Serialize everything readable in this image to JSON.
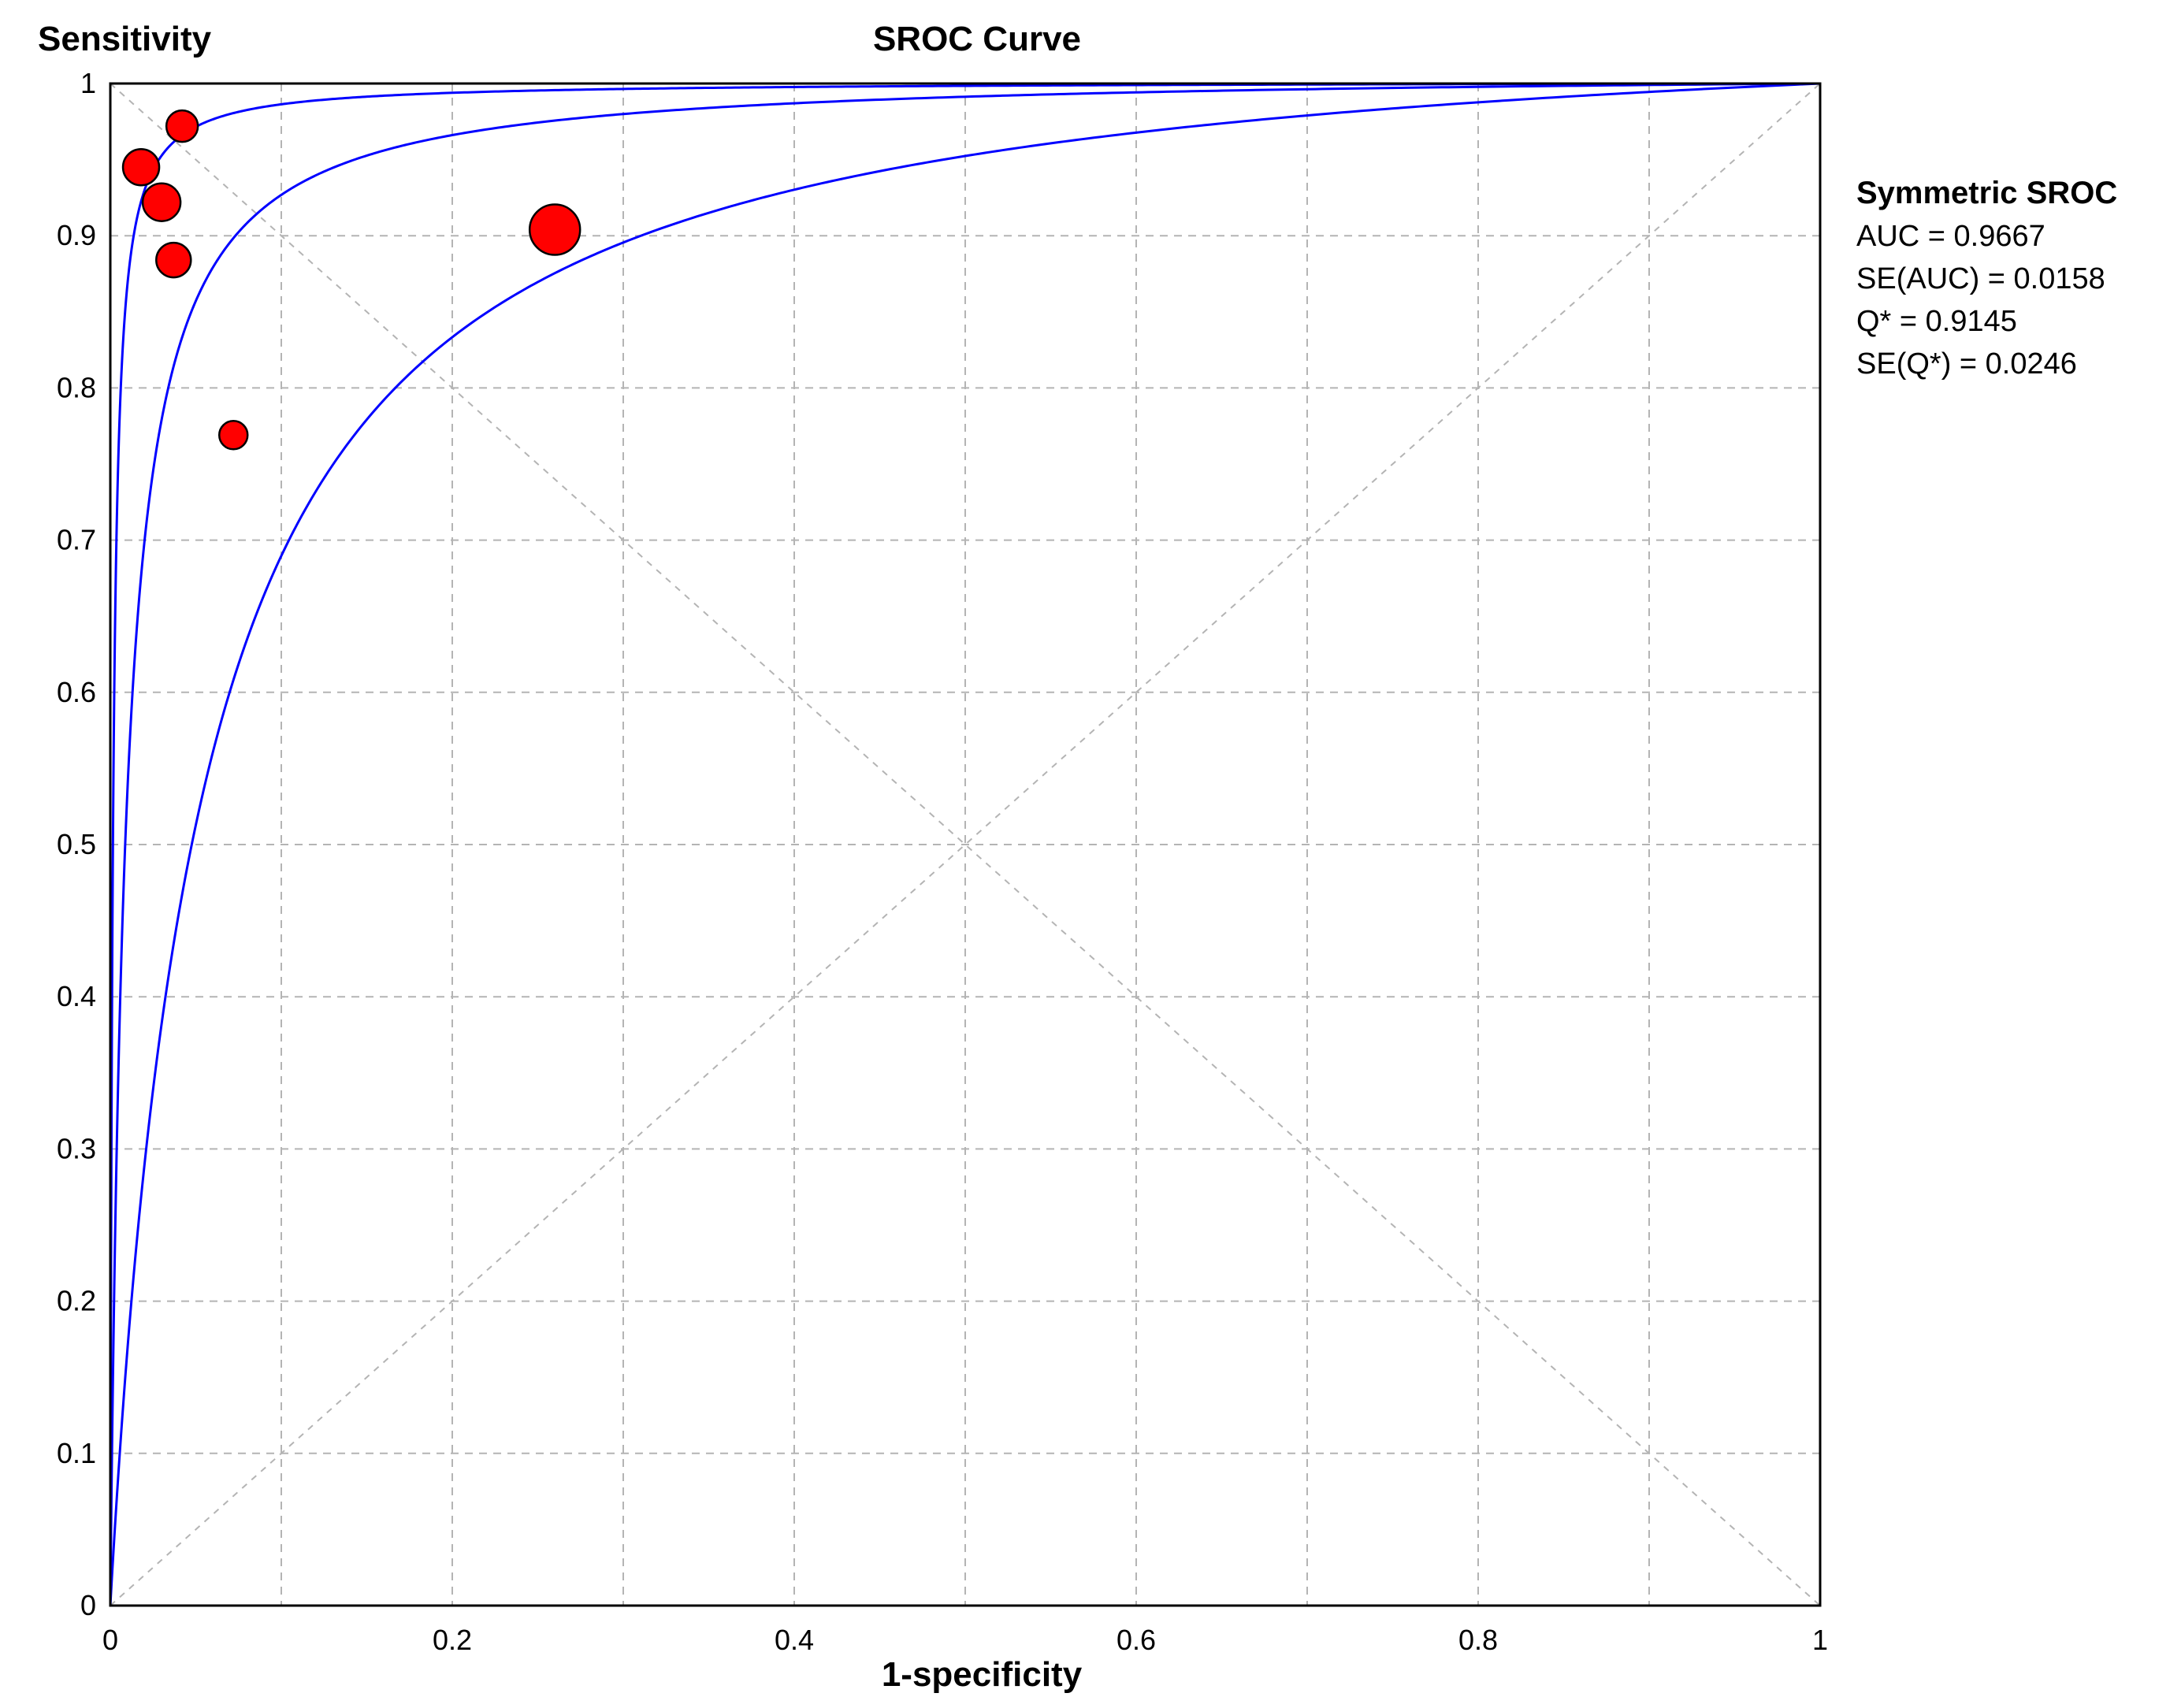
{
  "chart_data": {
    "type": "scatter",
    "title": "SROC Curve",
    "xlabel": "1-specificity",
    "ylabel": "Sensitivity",
    "xlim": [
      0,
      1
    ],
    "ylim": [
      0,
      1
    ],
    "grid": true,
    "x_ticks": [
      0,
      0.2,
      0.4,
      0.6,
      0.8,
      1
    ],
    "y_ticks": [
      0,
      0.1,
      0.2,
      0.3,
      0.4,
      0.5,
      0.6,
      0.7,
      0.8,
      0.9,
      1
    ],
    "x_tick_labels": [
      "0",
      "0.2",
      "0.4",
      "0.6",
      "0.8",
      "1"
    ],
    "y_tick_labels": [
      "0",
      "0.1",
      "0.2",
      "0.3",
      "0.4",
      "0.5",
      "0.6",
      "0.7",
      "0.8",
      "0.9",
      "1"
    ],
    "points": [
      {
        "x": 0.042,
        "y": 0.972,
        "weight": 1.0
      },
      {
        "x": 0.018,
        "y": 0.945,
        "weight": 1.15
      },
      {
        "x": 0.03,
        "y": 0.922,
        "weight": 1.2
      },
      {
        "x": 0.037,
        "y": 0.884,
        "weight": 1.1
      },
      {
        "x": 0.072,
        "y": 0.769,
        "weight": 0.9
      },
      {
        "x": 0.26,
        "y": 0.904,
        "weight": 1.6
      }
    ],
    "curves": {
      "sroc_dor": 114,
      "lower_ci_dor": 20,
      "upper_ci_dor": 650
    },
    "legend_position": "right",
    "stats": {
      "title": "Symmetric SROC",
      "lines": [
        "AUC = 0.9667",
        "SE(AUC) = 0.0158",
        "Q* = 0.9145",
        "SE(Q*) = 0.0246"
      ]
    },
    "colors": {
      "points": "#ff0000",
      "point_outline": "#000000",
      "curves": "#0000ff",
      "grid": "#b4b4b4",
      "axes": "#000000"
    }
  }
}
